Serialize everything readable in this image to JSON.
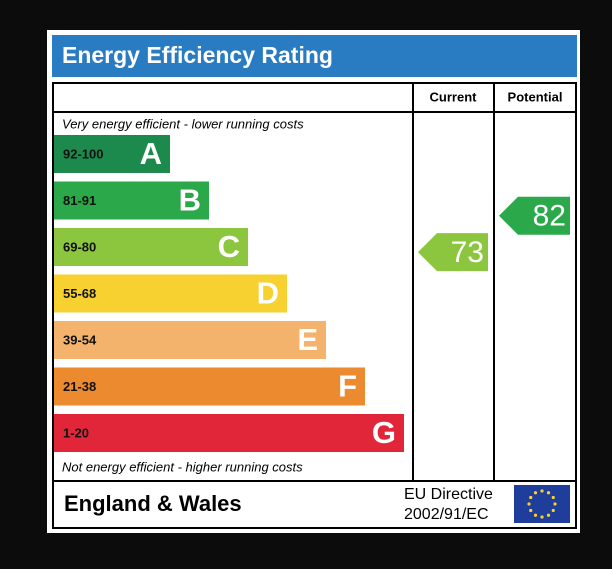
{
  "title": "Energy Efficiency Rating",
  "columns": {
    "current": "Current",
    "potential": "Potential"
  },
  "top_note": "Very energy efficient - lower running costs",
  "bottom_note": "Not energy efficient - higher running costs",
  "bands": [
    {
      "letter": "A",
      "range": {
        "label": "92-100",
        "min": 92,
        "max": 100
      },
      "color": "#1b8a4c"
    },
    {
      "letter": "B",
      "range": {
        "label": "81-91",
        "min": 81,
        "max": 91
      },
      "color": "#2aa84a"
    },
    {
      "letter": "C",
      "range": {
        "label": "69-80",
        "min": 69,
        "max": 80
      },
      "color": "#8cc63f"
    },
    {
      "letter": "D",
      "range": {
        "label": "55-68",
        "min": 55,
        "max": 68
      },
      "color": "#f7d12f"
    },
    {
      "letter": "E",
      "range": {
        "label": "39-54",
        "min": 39,
        "max": 54
      },
      "color": "#f3b36c"
    },
    {
      "letter": "F",
      "range": {
        "label": "21-38",
        "min": 21,
        "max": 38
      },
      "color": "#ec8a2f"
    },
    {
      "letter": "G",
      "range": {
        "label": "1-20",
        "min": 1,
        "max": 20
      },
      "color": "#e2263a"
    }
  ],
  "current": 73,
  "potential": 82,
  "footer": {
    "region": "England & Wales",
    "directive_line1": "EU Directive",
    "directive_line2": "2002/91/EC"
  }
}
